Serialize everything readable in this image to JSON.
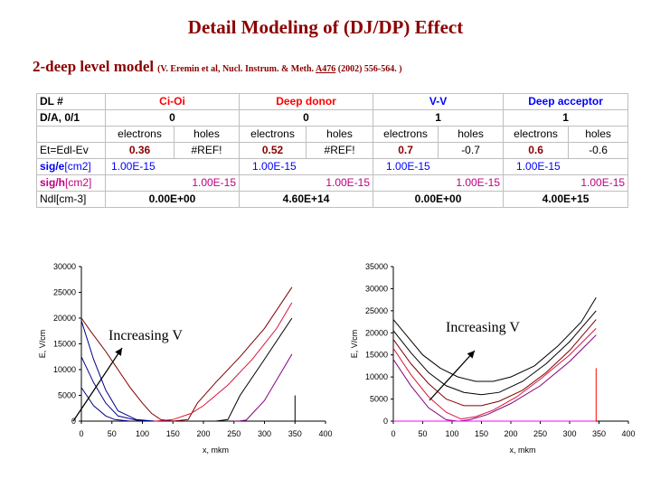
{
  "title": "Detail Modeling of (DJ/DP) Effect",
  "subtitle": {
    "main": "2-deep level model",
    "ref_prefix": "(V. Eremin et al, Nucl. Instrum. & Meth. ",
    "ref_volume": "A476",
    "ref_suffix": " (2002) 556-564. )"
  },
  "table": {
    "row_dl": {
      "label": "DL #",
      "levels": [
        "Ci-Oi",
        "Deep donor",
        "V-V",
        "Deep acceptor"
      ]
    },
    "row_da": {
      "label": "D/A, 0/1",
      "values": [
        "0",
        "0",
        "1",
        "1"
      ]
    },
    "row_carriers": {
      "electrons": "electrons",
      "holes": "holes"
    },
    "row_et": {
      "label": "Et=Edl-Ev",
      "values": [
        "0.36",
        "#REF!",
        "0.52",
        "#REF!",
        "0.7",
        "-0.7",
        "0.6",
        "-0.6"
      ]
    },
    "row_sige": {
      "label_main": "sig/e",
      "label_unit": "[cm2]",
      "values": [
        "1.00E-15",
        "1.00E-15",
        "1.00E-15",
        "1.00E-15"
      ]
    },
    "row_sigh": {
      "label_main": "sig/h",
      "label_unit": "[cm2]",
      "values": [
        "1.00E-15",
        "1.00E-15",
        "1.00E-15",
        "1.00E-15"
      ]
    },
    "row_ndl": {
      "label": "Ndl[cm-3]",
      "values": [
        "0.00E+00",
        "4.60E+14",
        "0.00E+00",
        "4.00E+15"
      ]
    }
  },
  "chart_data": [
    {
      "type": "line",
      "xlabel": "x, mkm",
      "ylabel": "E, V/cm",
      "xlim": [
        0,
        400
      ],
      "ylim": [
        0,
        30000
      ],
      "xticks": [
        "0",
        "50",
        "100",
        "150",
        "200",
        "250",
        "300",
        "350",
        "400"
      ],
      "yticks": [
        "0",
        "5000",
        "10000",
        "15000",
        "20000",
        "25000",
        "30000"
      ],
      "annotation": "Increasing V",
      "series": [
        {
          "color": "#00008b",
          "x": [
            0,
            20,
            40,
            60,
            90,
            120,
            150
          ],
          "y": [
            19500,
            12000,
            6000,
            2000,
            300,
            0,
            0
          ]
        },
        {
          "color": "#00008b",
          "x": [
            0,
            20,
            40,
            60,
            90,
            115
          ],
          "y": [
            12500,
            7500,
            3500,
            1000,
            200,
            0
          ]
        },
        {
          "color": "#00008b",
          "x": [
            0,
            20,
            40,
            55,
            80
          ],
          "y": [
            6500,
            3000,
            1000,
            300,
            0
          ]
        },
        {
          "color": "#800000",
          "x": [
            0,
            15,
            40,
            60,
            80,
            100,
            115,
            130,
            150,
            175,
            190,
            220,
            260,
            300,
            345
          ],
          "y": [
            20000,
            17500,
            13500,
            10000,
            6500,
            3500,
            1500,
            300,
            0,
            300,
            3500,
            7500,
            12500,
            18000,
            26000
          ]
        },
        {
          "color": "#dc143c",
          "x": [
            120,
            150,
            180,
            200,
            240,
            280,
            320,
            345
          ],
          "y": [
            0,
            300,
            1500,
            3000,
            7000,
            12000,
            18000,
            23000
          ]
        },
        {
          "color": "#000000",
          "x": [
            220,
            240,
            260,
            300,
            345
          ],
          "y": [
            0,
            300,
            5000,
            12000,
            20000
          ]
        },
        {
          "color": "#800080",
          "x": [
            250,
            260,
            270,
            300,
            345
          ],
          "y": [
            0,
            50,
            200,
            4000,
            13000
          ]
        },
        {
          "color": "#000000",
          "x": [
            350,
            350
          ],
          "y": [
            0,
            5000
          ]
        }
      ]
    },
    {
      "type": "line",
      "xlabel": "x, mkm",
      "ylabel": "E, V/cm",
      "xlim": [
        0,
        400
      ],
      "ylim": [
        0,
        35000
      ],
      "xticks": [
        "0",
        "50",
        "100",
        "150",
        "200",
        "250",
        "300",
        "350",
        "400"
      ],
      "yticks": [
        "0",
        "5000",
        "10000",
        "15000",
        "20000",
        "25000",
        "30000",
        "35000"
      ],
      "annotation": "Increasing V",
      "series": [
        {
          "color": "#000000",
          "x": [
            0,
            25,
            50,
            80,
            110,
            140,
            170,
            200,
            240,
            280,
            320,
            345
          ],
          "y": [
            23000,
            19000,
            15000,
            12000,
            10000,
            9000,
            9000,
            10000,
            12500,
            17000,
            22500,
            28000
          ]
        },
        {
          "color": "#000000",
          "x": [
            0,
            30,
            60,
            90,
            120,
            150,
            180,
            220,
            260,
            300,
            345
          ],
          "y": [
            20500,
            15500,
            11000,
            8000,
            6500,
            6000,
            6500,
            9000,
            13000,
            18000,
            25000
          ]
        },
        {
          "color": "#800000",
          "x": [
            0,
            30,
            60,
            90,
            120,
            150,
            180,
            220,
            260,
            300,
            345
          ],
          "y": [
            18500,
            13000,
            8500,
            5000,
            3500,
            3500,
            4500,
            7000,
            11000,
            16000,
            23000
          ]
        },
        {
          "color": "#dc143c",
          "x": [
            0,
            30,
            60,
            90,
            115,
            140,
            170,
            210,
            250,
            300,
            345
          ],
          "y": [
            16500,
            10500,
            5500,
            2000,
            500,
            1000,
            2500,
            5500,
            9500,
            15000,
            21000
          ]
        },
        {
          "color": "#800080",
          "x": [
            0,
            30,
            60,
            90,
            110,
            130,
            160,
            200,
            250,
            300,
            345
          ],
          "y": [
            14000,
            8000,
            3000,
            300,
            0,
            300,
            1500,
            4000,
            8000,
            13500,
            19500
          ]
        },
        {
          "color": "#ff00ff",
          "x": [
            0,
            345
          ],
          "y": [
            0,
            0
          ]
        },
        {
          "color": "#ff0000",
          "x": [
            345,
            345
          ],
          "y": [
            0,
            12000
          ]
        }
      ]
    }
  ]
}
